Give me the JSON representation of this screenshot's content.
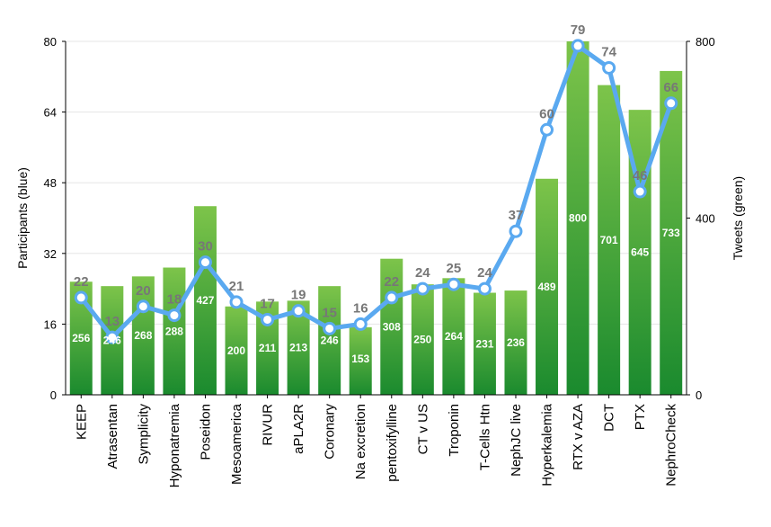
{
  "chart_data": {
    "type": "bar",
    "categories": [
      "KEEP",
      "Atrasentan",
      "Symplicity",
      "Hyponatremia",
      "Poseidon",
      "Mesoamerica",
      "RIVUR",
      "aPLA2R",
      "Coronary",
      "Na excretion",
      "pentoxifylline",
      "CT v US",
      "Troponin",
      "T-Cells Htn",
      "NephJC live",
      "Hyperkalemia",
      "RTX v AZA",
      "DCT",
      "PTX",
      "NephroCheck"
    ],
    "series": [
      {
        "axis": "right",
        "kind": "bar",
        "color": "#3fa535",
        "values": [
          256,
          246,
          268,
          288,
          427,
          200,
          211,
          213,
          246,
          153,
          308,
          250,
          264,
          231,
          236,
          489,
          800,
          701,
          645,
          733
        ]
      },
      {
        "axis": "left",
        "kind": "line",
        "color": "#5aa9f0",
        "values": [
          22,
          13,
          20,
          18,
          30,
          21,
          17,
          19,
          15,
          16,
          22,
          24,
          25,
          24,
          37,
          60,
          79,
          74,
          46,
          66
        ]
      }
    ],
    "ylabel": "Participants (blue)",
    "y2label": "Tweets (green)",
    "ylim": [
      0,
      80
    ],
    "y2lim": [
      0,
      800
    ],
    "yticks": [
      0,
      16,
      32,
      48,
      64,
      80
    ],
    "y2ticks": [
      0,
      400,
      800
    ],
    "grid": true
  }
}
